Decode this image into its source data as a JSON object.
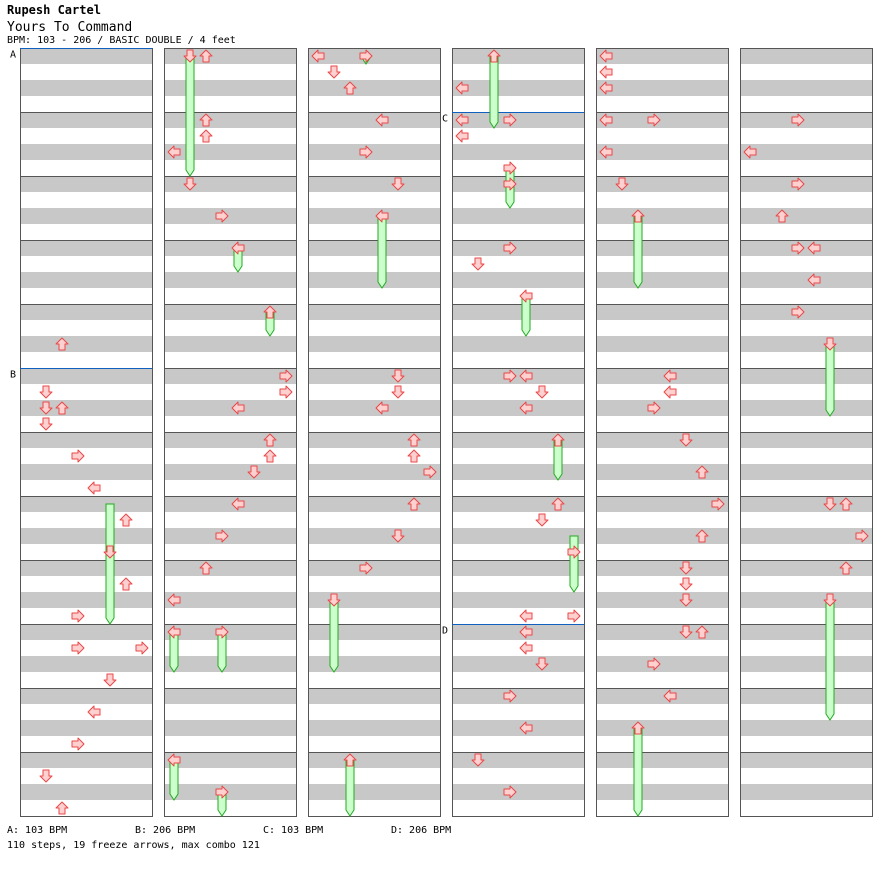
{
  "header": {
    "artist": "Rupesh Cartel",
    "title": "Yours To Command",
    "bpm_line": "BPM: 103 - 206 / BASIC DOUBLE / 4 feet"
  },
  "bpm_markers": [
    {
      "label": "A",
      "bpm_text": "A: 103 BPM",
      "column": 0,
      "row": 0
    },
    {
      "label": "B",
      "bpm_text": "B: 206 BPM",
      "column": 0,
      "row": 20
    },
    {
      "label": "C",
      "bpm_text": "C: 103 BPM",
      "column": 3,
      "row": 4
    },
    {
      "label": "D",
      "bpm_text": "D: 206 BPM",
      "column": 3,
      "row": 36
    }
  ],
  "summary": "110 steps, 19 freeze arrows, max combo 121",
  "colors": {
    "arrow_fill": "#ffd0d0",
    "arrow_stroke": "#e84848",
    "freeze_fill": "#ccffcc",
    "freeze_stroke": "#22aa22",
    "stripe": "#c8c8c8",
    "bpm_line": "#1060c0"
  },
  "chart_data": {
    "type": "step-chart",
    "mode": "BASIC DOUBLE",
    "lanes": [
      "P1-left",
      "P1-down",
      "P1-up",
      "P1-right",
      "P2-left",
      "P2-down",
      "P2-up",
      "P2-right"
    ],
    "columns": 6,
    "rows_per_column": 48,
    "notes": [
      [
        0,
        18,
        2
      ],
      [
        0,
        21,
        1
      ],
      [
        0,
        22,
        1
      ],
      [
        0,
        22,
        2
      ],
      [
        0,
        23,
        1
      ],
      [
        0,
        25,
        3
      ],
      [
        0,
        27,
        4
      ],
      [
        0,
        29,
        6
      ],
      [
        0,
        31,
        5
      ],
      [
        0,
        33,
        6
      ],
      [
        0,
        35,
        3
      ],
      [
        0,
        37,
        3
      ],
      [
        0,
        37,
        7
      ],
      [
        0,
        39,
        5
      ],
      [
        0,
        41,
        4
      ],
      [
        0,
        43,
        3
      ],
      [
        0,
        45,
        1
      ],
      [
        0,
        47,
        2
      ],
      [
        1,
        0,
        1
      ],
      [
        1,
        0,
        2
      ],
      [
        1,
        4,
        2
      ],
      [
        1,
        5,
        2
      ],
      [
        1,
        6,
        0
      ],
      [
        1,
        8,
        1
      ],
      [
        1,
        10,
        3
      ],
      [
        1,
        12,
        4
      ],
      [
        1,
        16,
        6
      ],
      [
        1,
        20,
        7
      ],
      [
        1,
        21,
        7
      ],
      [
        1,
        22,
        4
      ],
      [
        1,
        24,
        6
      ],
      [
        1,
        25,
        6
      ],
      [
        1,
        26,
        5
      ],
      [
        1,
        28,
        4
      ],
      [
        1,
        30,
        3
      ],
      [
        1,
        32,
        2
      ],
      [
        1,
        34,
        0
      ],
      [
        1,
        36,
        0
      ],
      [
        1,
        36,
        3
      ],
      [
        1,
        44,
        0
      ],
      [
        1,
        46,
        3
      ],
      [
        2,
        0,
        0
      ],
      [
        2,
        0,
        3
      ],
      [
        2,
        1,
        1
      ],
      [
        2,
        2,
        2
      ],
      [
        2,
        4,
        4
      ],
      [
        2,
        6,
        3
      ],
      [
        2,
        8,
        5
      ],
      [
        2,
        10,
        4
      ],
      [
        2,
        20,
        5
      ],
      [
        2,
        21,
        5
      ],
      [
        2,
        22,
        4
      ],
      [
        2,
        24,
        6
      ],
      [
        2,
        25,
        6
      ],
      [
        2,
        26,
        7
      ],
      [
        2,
        28,
        6
      ],
      [
        2,
        30,
        5
      ],
      [
        2,
        32,
        3
      ],
      [
        2,
        34,
        1
      ],
      [
        2,
        44,
        2
      ],
      [
        3,
        0,
        2
      ],
      [
        3,
        2,
        0
      ],
      [
        3,
        4,
        0
      ],
      [
        3,
        4,
        3
      ],
      [
        3,
        5,
        0
      ],
      [
        3,
        7,
        3
      ],
      [
        3,
        8,
        3
      ],
      [
        3,
        12,
        3
      ],
      [
        3,
        13,
        1
      ],
      [
        3,
        15,
        4
      ],
      [
        3,
        20,
        3
      ],
      [
        3,
        20,
        4
      ],
      [
        3,
        21,
        5
      ],
      [
        3,
        22,
        4
      ],
      [
        3,
        24,
        6
      ],
      [
        3,
        28,
        6
      ],
      [
        3,
        29,
        5
      ],
      [
        3,
        31,
        7
      ],
      [
        3,
        35,
        7
      ],
      [
        3,
        35,
        4
      ],
      [
        3,
        36,
        4
      ],
      [
        3,
        37,
        4
      ],
      [
        3,
        38,
        5
      ],
      [
        3,
        40,
        3
      ],
      [
        3,
        42,
        4
      ],
      [
        3,
        44,
        1
      ],
      [
        3,
        46,
        3
      ],
      [
        4,
        0,
        0
      ],
      [
        4,
        1,
        0
      ],
      [
        4,
        2,
        0
      ],
      [
        4,
        4,
        0
      ],
      [
        4,
        4,
        3
      ],
      [
        4,
        6,
        0
      ],
      [
        4,
        8,
        1
      ],
      [
        4,
        10,
        2
      ],
      [
        4,
        20,
        4
      ],
      [
        4,
        21,
        4
      ],
      [
        4,
        22,
        3
      ],
      [
        4,
        24,
        5
      ],
      [
        4,
        26,
        6
      ],
      [
        4,
        28,
        7
      ],
      [
        4,
        30,
        6
      ],
      [
        4,
        32,
        5
      ],
      [
        4,
        33,
        5
      ],
      [
        4,
        34,
        5
      ],
      [
        4,
        36,
        5
      ],
      [
        4,
        36,
        6
      ],
      [
        4,
        38,
        3
      ],
      [
        4,
        40,
        4
      ],
      [
        4,
        42,
        2
      ],
      [
        5,
        4,
        3
      ],
      [
        5,
        6,
        0
      ],
      [
        5,
        8,
        3
      ],
      [
        5,
        10,
        2
      ],
      [
        5,
        12,
        3
      ],
      [
        5,
        12,
        4
      ],
      [
        5,
        14,
        4
      ],
      [
        5,
        16,
        3
      ],
      [
        5,
        18,
        5
      ],
      [
        5,
        28,
        5
      ],
      [
        5,
        28,
        6
      ],
      [
        5,
        30,
        7
      ],
      [
        5,
        32,
        6
      ],
      [
        5,
        34,
        5
      ]
    ],
    "freezes": [
      [
        0,
        28,
        5,
        36
      ],
      [
        1,
        0,
        1,
        8
      ],
      [
        1,
        12,
        4,
        14
      ],
      [
        1,
        16,
        6,
        18
      ],
      [
        1,
        36,
        0,
        39
      ],
      [
        1,
        36,
        3,
        39
      ],
      [
        1,
        44,
        0,
        47
      ],
      [
        1,
        46,
        3,
        48
      ],
      [
        2,
        0,
        3,
        1
      ],
      [
        2,
        10,
        4,
        15
      ],
      [
        2,
        34,
        1,
        39
      ],
      [
        2,
        44,
        2,
        48
      ],
      [
        3,
        0,
        2,
        5
      ],
      [
        3,
        7,
        3,
        10
      ],
      [
        3,
        15,
        4,
        18
      ],
      [
        3,
        24,
        6,
        27
      ],
      [
        3,
        30,
        7,
        34
      ],
      [
        4,
        10,
        2,
        15
      ],
      [
        4,
        42,
        2,
        48
      ],
      [
        5,
        18,
        5,
        23
      ],
      [
        5,
        34,
        5,
        42
      ]
    ]
  }
}
